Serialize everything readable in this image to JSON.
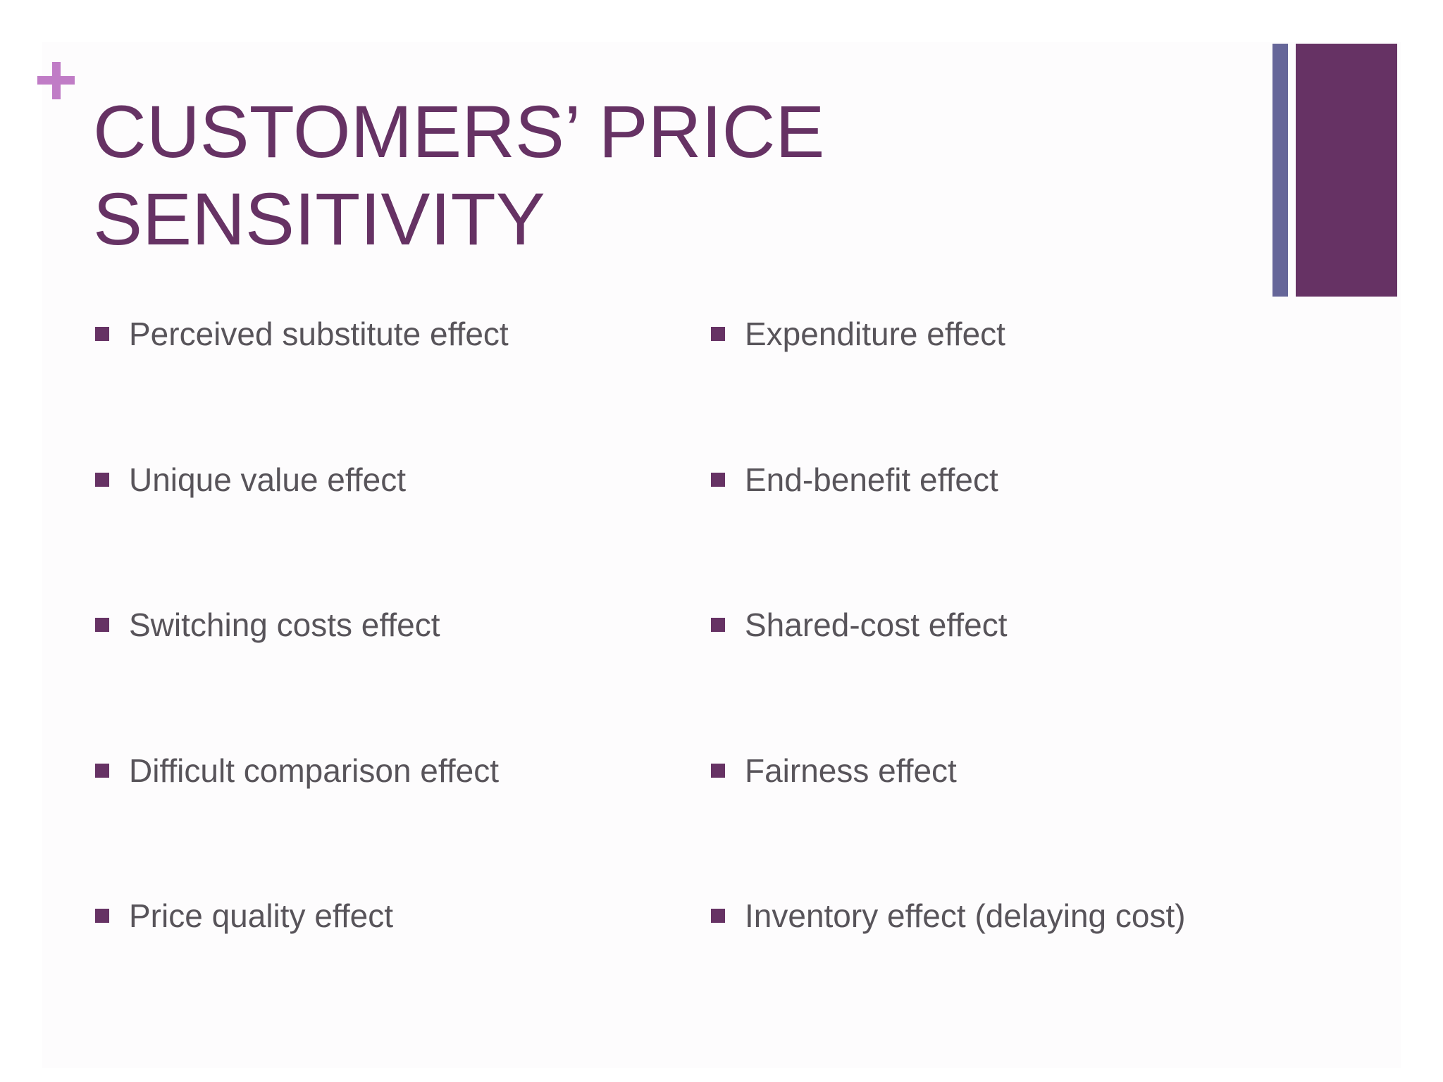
{
  "slide": {
    "title_line1": "CUSTOMERS’ PRICE",
    "title_line2": "SENSITIVITY",
    "left_items": [
      "Perceived substitute effect",
      "Unique value effect",
      "Switching costs effect",
      "Difficult comparison effect",
      "Price quality effect"
    ],
    "right_items": [
      "Expenditure effect",
      "End-benefit effect",
      "Shared-cost effect",
      "Fairness effect",
      "Inventory effect (delaying cost)"
    ]
  },
  "colors": {
    "title": "#663264",
    "bullet": "#663264",
    "body_text": "#58545a",
    "plus_accent": "#c07cc6",
    "bar_thin": "#666699",
    "bar_wide": "#663264"
  },
  "icons": {
    "corner": "plus-icon",
    "bullet": "square-bullet-icon"
  }
}
